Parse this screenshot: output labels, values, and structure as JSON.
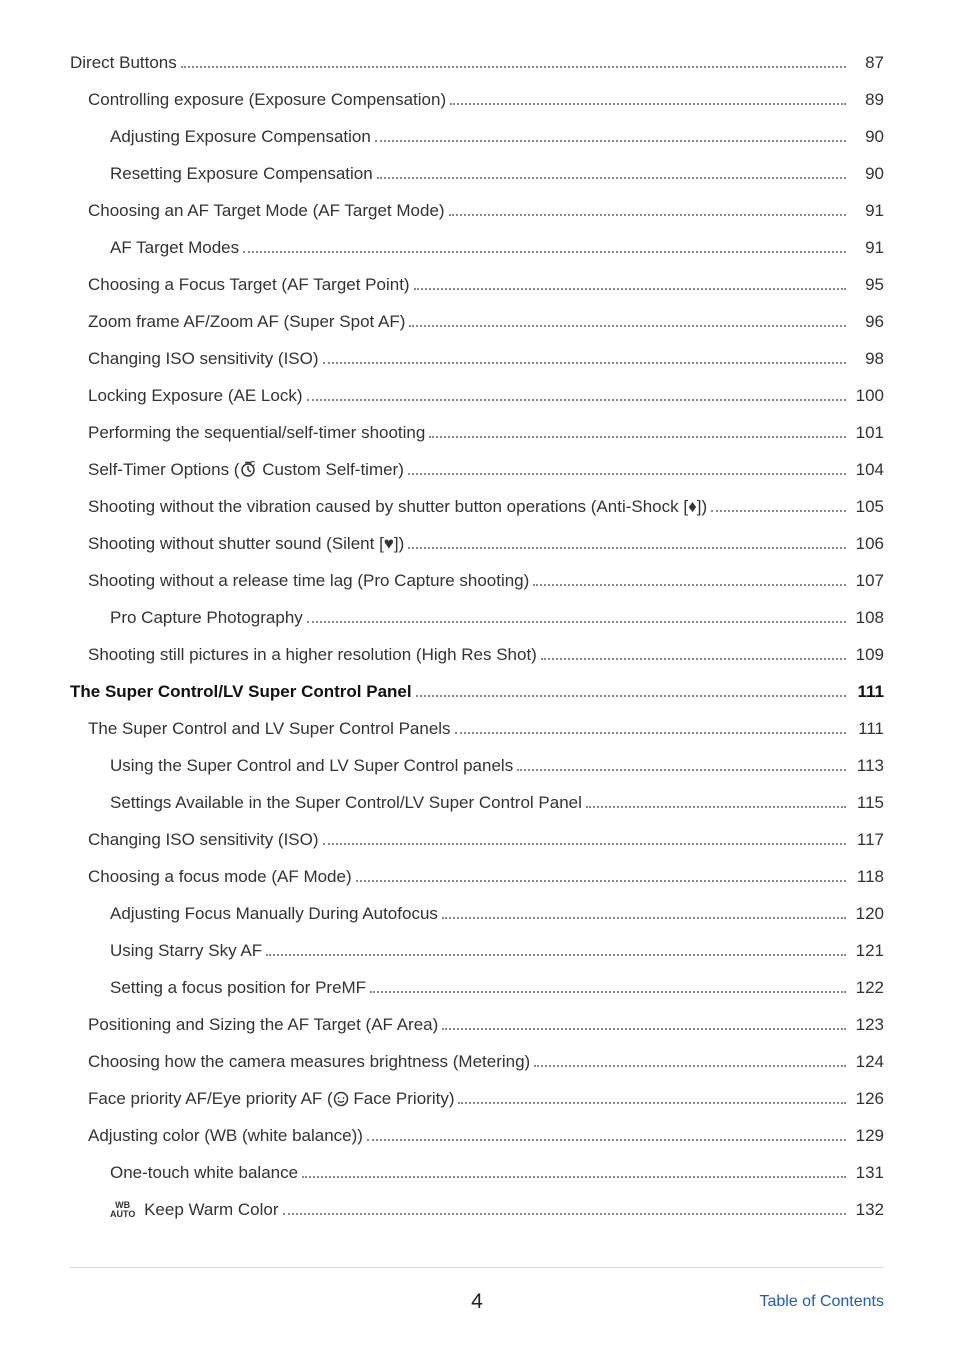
{
  "page_number": "4",
  "footer_link": "Table of Contents",
  "colors": {
    "text": "#333333",
    "bold_text": "#111111",
    "dots": "#888888",
    "footer_border": "#d9dde0",
    "footer_link": "#1a5cc8",
    "background": "#ffffff"
  },
  "toc": [
    {
      "label": "Direct Buttons",
      "page": "87",
      "indent": 0,
      "bold": false
    },
    {
      "label": "Controlling exposure (Exposure Compensation)",
      "page": "89",
      "indent": 1,
      "bold": false
    },
    {
      "label": "Adjusting Exposure Compensation",
      "page": "90",
      "indent": 2,
      "bold": false
    },
    {
      "label": "Resetting Exposure Compensation",
      "page": "90",
      "indent": 2,
      "bold": false
    },
    {
      "label": "Choosing an AF Target Mode (AF Target Mode)",
      "page": "91",
      "indent": 1,
      "bold": false
    },
    {
      "label": "AF Target Modes",
      "page": "91",
      "indent": 2,
      "bold": false
    },
    {
      "label": "Choosing a Focus Target (AF Target Point)",
      "page": "95",
      "indent": 1,
      "bold": false
    },
    {
      "label": "Zoom frame AF/Zoom AF (Super Spot AF)",
      "page": "96",
      "indent": 1,
      "bold": false
    },
    {
      "label": "Changing ISO sensitivity (ISO)",
      "page": "98",
      "indent": 1,
      "bold": false
    },
    {
      "label": "Locking Exposure (AE Lock)",
      "page": "100",
      "indent": 1,
      "bold": false
    },
    {
      "label": "Performing the sequential/self-timer shooting",
      "page": "101",
      "indent": 1,
      "bold": false
    },
    {
      "label": "Self-Timer Options (",
      "label2": " Custom Self-timer)",
      "page": "104",
      "indent": 1,
      "bold": false,
      "icon": "custom-timer"
    },
    {
      "label": "Shooting without the vibration caused by shutter button operations (Anti-Shock [♦])",
      "page": "105",
      "indent": 1,
      "bold": false
    },
    {
      "label": "Shooting without shutter sound (Silent [♥])",
      "page": "106",
      "indent": 1,
      "bold": false
    },
    {
      "label": "Shooting without a release time lag (Pro Capture shooting)",
      "page": "107",
      "indent": 1,
      "bold": false
    },
    {
      "label": "Pro Capture Photography",
      "page": "108",
      "indent": 2,
      "bold": false
    },
    {
      "label": "Shooting still pictures in a higher resolution (High Res Shot)",
      "page": "109",
      "indent": 1,
      "bold": false
    },
    {
      "label": "The Super Control/LV Super Control Panel",
      "page": "111",
      "indent": 0,
      "bold": true
    },
    {
      "label": "The Super Control and LV Super Control Panels",
      "page": "111",
      "indent": 1,
      "bold": false
    },
    {
      "label": "Using the Super Control and LV Super Control panels",
      "page": "113",
      "indent": 2,
      "bold": false
    },
    {
      "label": "Settings Available in the Super Control/LV Super Control Panel",
      "page": "115",
      "indent": 2,
      "bold": false
    },
    {
      "label": "Changing ISO sensitivity (ISO)",
      "page": "117",
      "indent": 1,
      "bold": false
    },
    {
      "label": "Choosing a focus mode (AF Mode)",
      "page": "118",
      "indent": 1,
      "bold": false
    },
    {
      "label": "Adjusting Focus Manually During Autofocus",
      "page": "120",
      "indent": 2,
      "bold": false
    },
    {
      "label": "Using Starry Sky AF",
      "page": "121",
      "indent": 2,
      "bold": false
    },
    {
      "label": "Setting a focus position for PreMF",
      "page": "122",
      "indent": 2,
      "bold": false
    },
    {
      "label": "Positioning and Sizing the AF Target (AF Area)",
      "page": "123",
      "indent": 1,
      "bold": false
    },
    {
      "label": "Choosing how the camera measures brightness (Metering)",
      "page": "124",
      "indent": 1,
      "bold": false
    },
    {
      "label": "Face priority AF/Eye priority AF (",
      "label2": " Face Priority)",
      "page": "126",
      "indent": 1,
      "bold": false,
      "icon": "face"
    },
    {
      "label": "Adjusting color (WB (white balance))",
      "page": "129",
      "indent": 1,
      "bold": false
    },
    {
      "label": "One-touch white balance",
      "page": "131",
      "indent": 2,
      "bold": false
    },
    {
      "label": " Keep Warm Color",
      "page": "132",
      "indent": 2,
      "bold": false,
      "icon": "wb-auto"
    }
  ]
}
